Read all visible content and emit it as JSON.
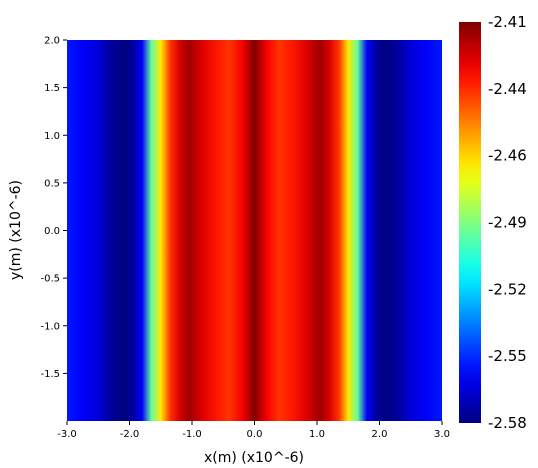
{
  "chart_data": {
    "type": "heatmap",
    "title": "",
    "xlabel": "x(m) (x10^-6)",
    "ylabel": "y(m) (x10^-6)",
    "xlim": [
      -3.0,
      3.0
    ],
    "ylim": [
      -2.0,
      2.0
    ],
    "x_ticks": [
      "-3.0",
      "-2.0",
      "-1.0",
      "0.0",
      "1.0",
      "2.0",
      "3.0"
    ],
    "y_ticks": [
      "2.0",
      "1.5",
      "1.0",
      "0.5",
      "0.0",
      "-0.5",
      "-1.0",
      "-1.5"
    ],
    "y_tick_values": [
      2.0,
      1.5,
      1.0,
      0.5,
      0.0,
      -0.5,
      -1.0,
      -1.5
    ],
    "colormap": "jet",
    "colorbar": {
      "min": -2.58,
      "max": -2.41,
      "tick_labels": [
        "-2.41",
        "-2.44",
        "-2.46",
        "-2.49",
        "-2.52",
        "-2.55",
        "-2.58"
      ],
      "tick_values": [
        -2.41,
        -2.44,
        -2.46,
        -2.49,
        -2.52,
        -2.55,
        -2.58
      ]
    },
    "profile_note_x": [
      -3.0,
      -2.75,
      -2.5,
      -2.3,
      -2.1,
      -1.95,
      -1.8,
      -1.65,
      -1.5,
      -1.35,
      -1.2,
      -1.05,
      -0.85,
      -0.6,
      -0.4,
      -0.2,
      0.0,
      0.2,
      0.4,
      0.6,
      0.85,
      1.05,
      1.2,
      1.35,
      1.5,
      1.65,
      1.8,
      1.95,
      2.1,
      2.3,
      2.5,
      2.75,
      3.0
    ],
    "profile_values": [
      -2.555,
      -2.56,
      -2.565,
      -2.575,
      -2.58,
      -2.575,
      -2.56,
      -2.5,
      -2.47,
      -2.44,
      -2.425,
      -2.415,
      -2.425,
      -2.435,
      -2.44,
      -2.43,
      -2.41,
      -2.43,
      -2.44,
      -2.435,
      -2.425,
      -2.415,
      -2.425,
      -2.44,
      -2.47,
      -2.5,
      -2.56,
      -2.575,
      -2.58,
      -2.575,
      -2.565,
      -2.56,
      -2.555
    ]
  }
}
